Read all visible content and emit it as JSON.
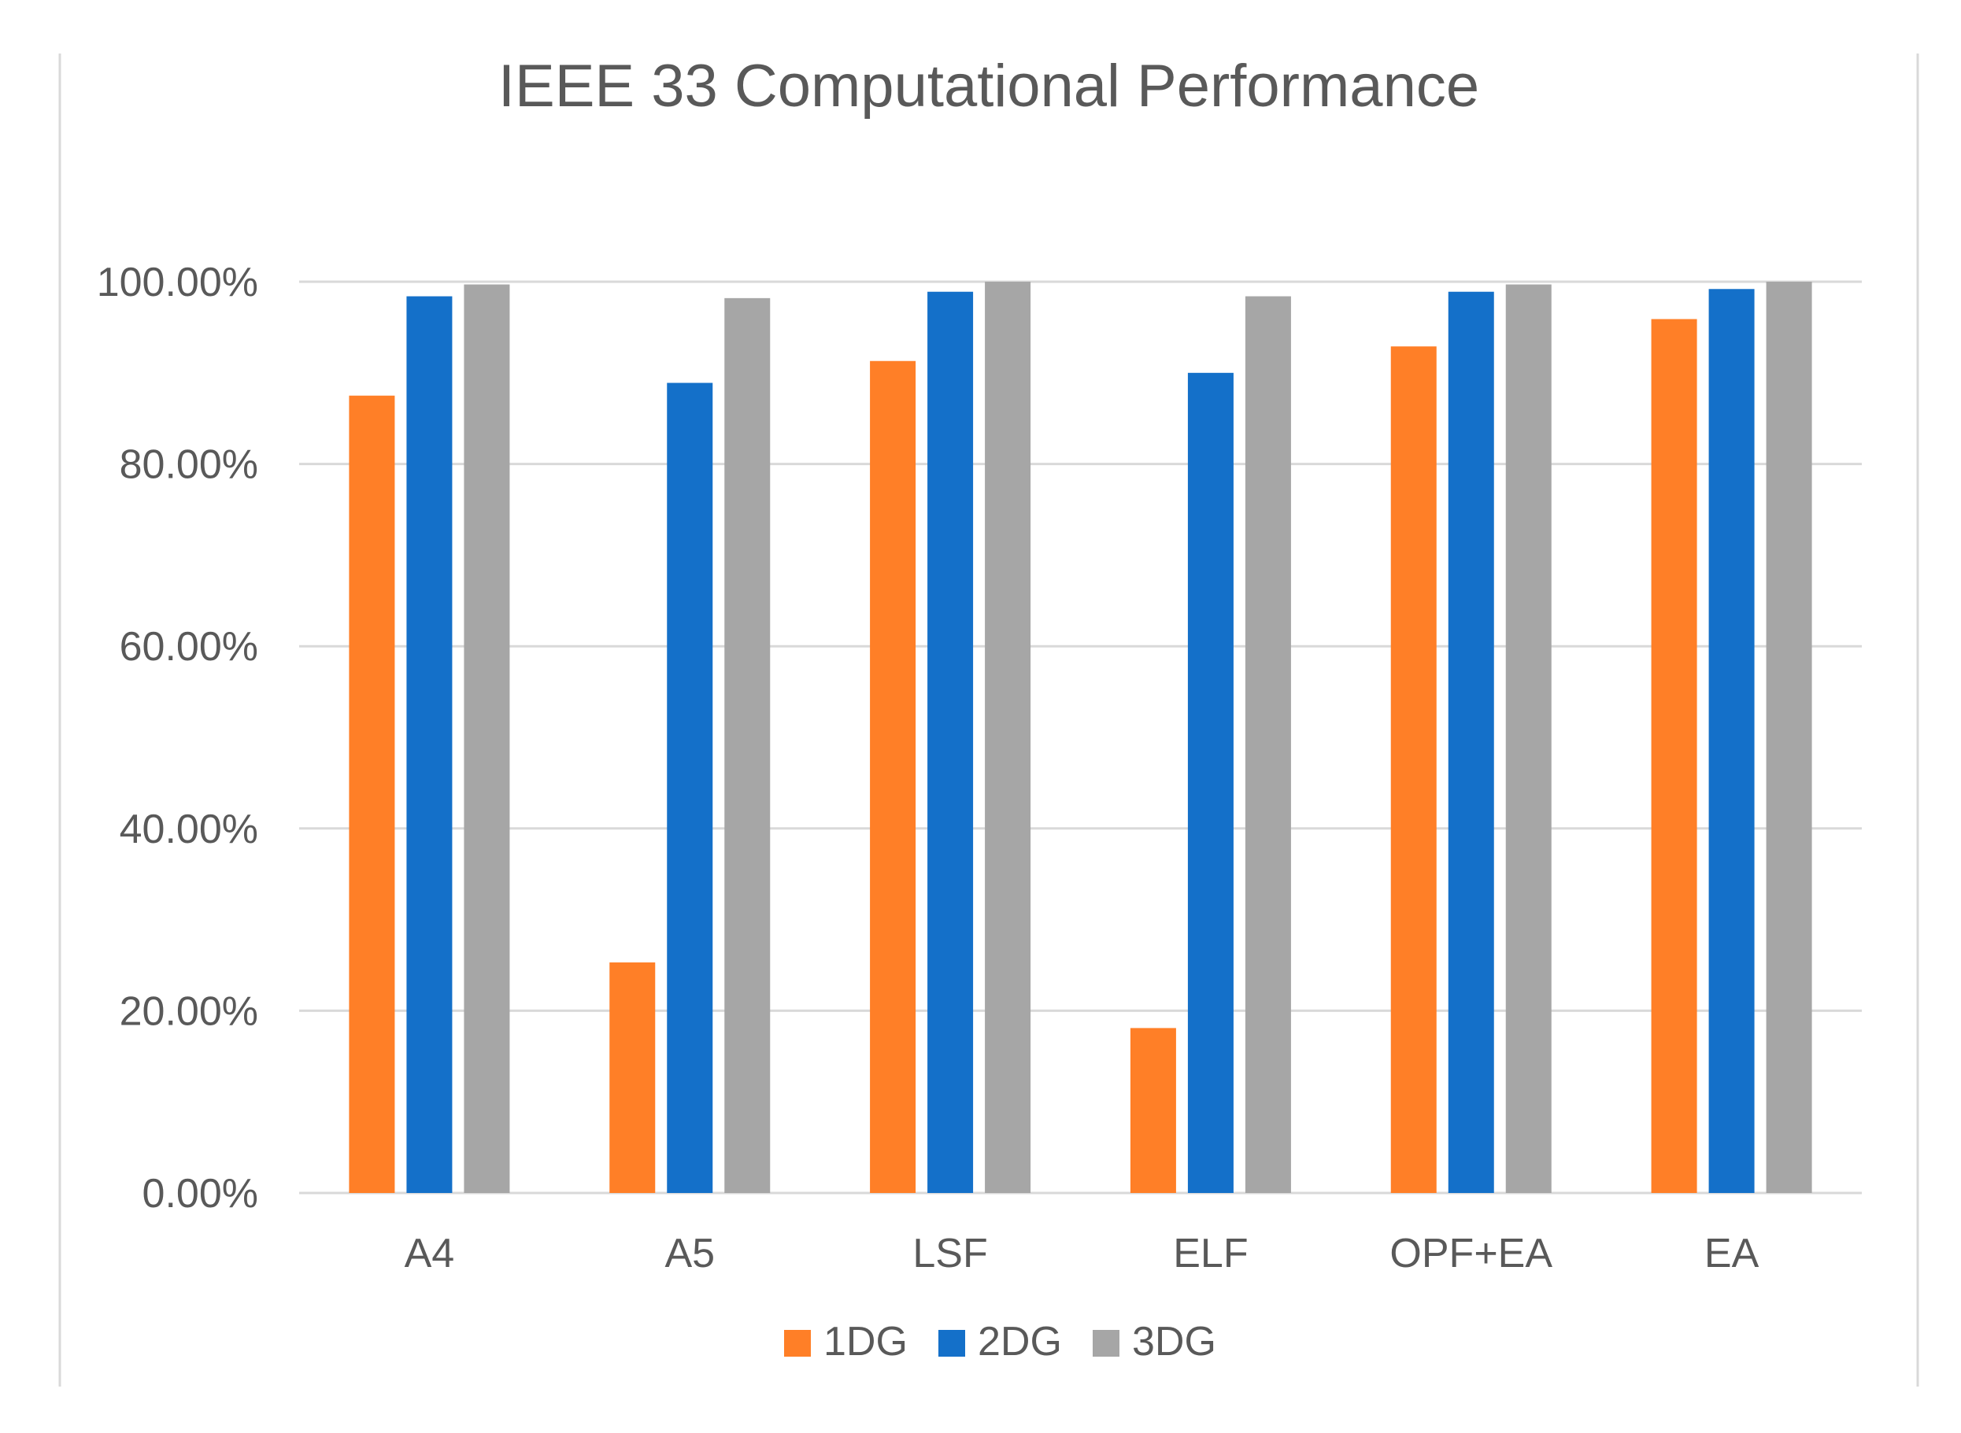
{
  "chart_data": {
    "type": "bar",
    "title": "IEEE 33 Computational Performance",
    "xlabel": "",
    "ylabel": "",
    "categories": [
      "A4",
      "A5",
      "LSF",
      "ELF",
      "OPF+EA",
      "EA"
    ],
    "series": [
      {
        "name": "1DG",
        "color": "#FF7F27",
        "values": [
          87.5,
          25.3,
          91.3,
          18.1,
          92.9,
          95.9
        ]
      },
      {
        "name": "2DG",
        "color": "#1470C9",
        "values": [
          98.4,
          88.9,
          98.9,
          90.0,
          98.9,
          99.2
        ]
      },
      {
        "name": "3DG",
        "color": "#A6A6A6",
        "values": [
          99.7,
          98.2,
          100.0,
          98.4,
          99.7,
          100.0
        ]
      }
    ],
    "ylim": [
      0,
      100
    ],
    "yticks": [
      0,
      20,
      40,
      60,
      80,
      100
    ],
    "ytick_labels": [
      "0.00%",
      "20.00%",
      "40.00%",
      "60.00%",
      "80.00%",
      "100.00%"
    ],
    "grid": true,
    "legend": "bottom-center"
  },
  "colors": {
    "gridline": "#D9D9D9",
    "axis_text": "#595959",
    "title_text": "#595959",
    "frame_border": "#D9D9D9"
  }
}
